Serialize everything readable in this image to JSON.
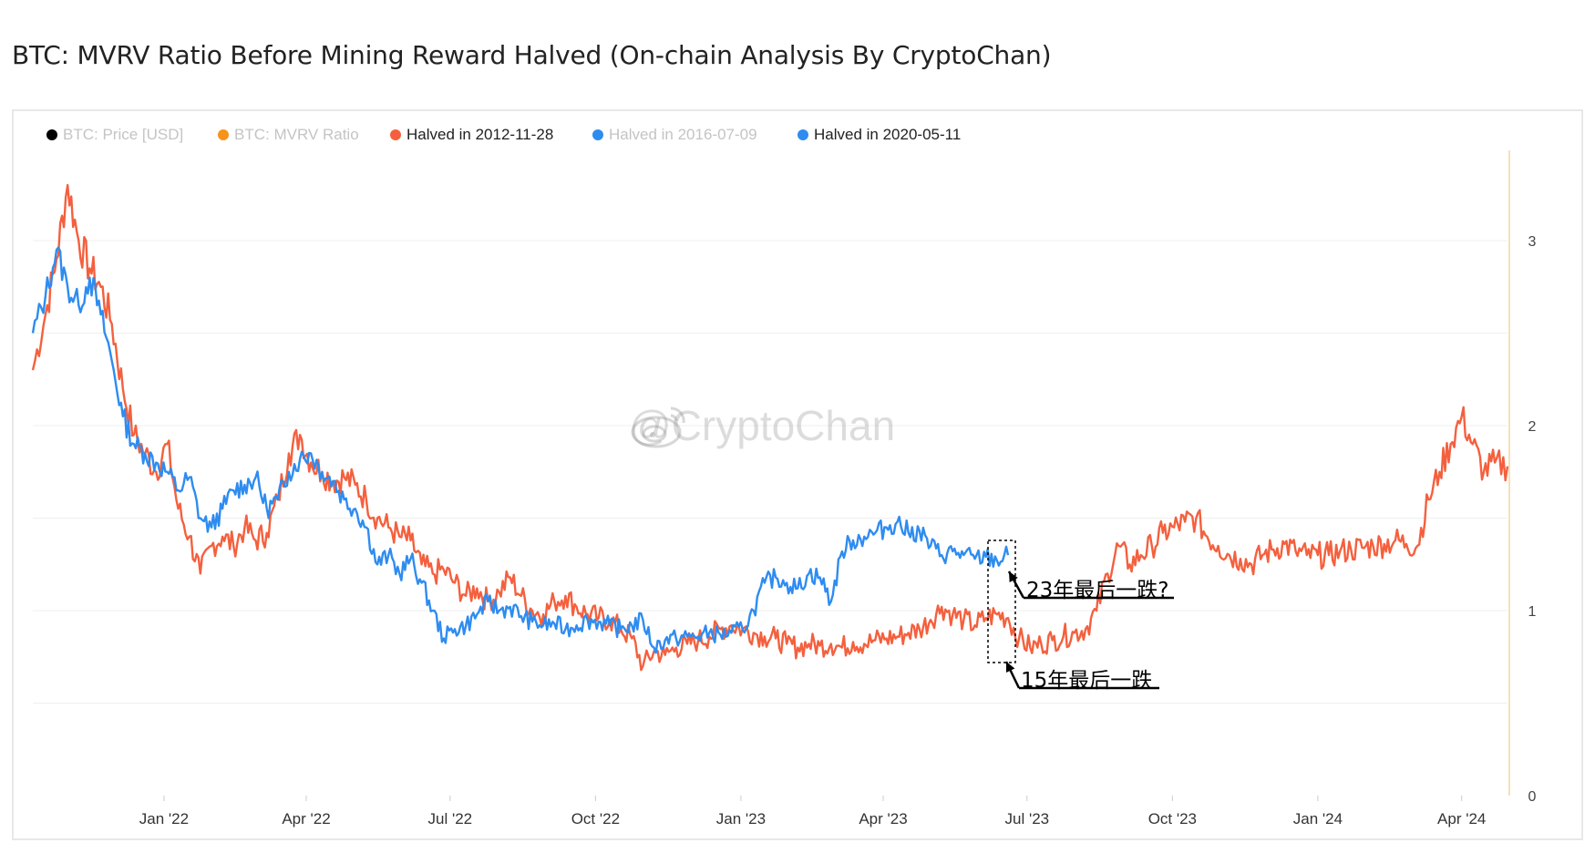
{
  "title": "BTC: MVRV Ratio Before Mining Reward Halved (On-chain Analysis By CryptoChan)",
  "watermark": "@CryptoChan",
  "legend": [
    {
      "label": "BTC: Price [USD]",
      "color": "#000000",
      "active": false
    },
    {
      "label": "BTC: MVRV Ratio",
      "color": "#f7931a",
      "active": false
    },
    {
      "label": "Halved in 2012-11-28",
      "color": "#f4603e",
      "active": true
    },
    {
      "label": "Halved in 2016-07-09",
      "color": "#2e8cf0",
      "active": false
    },
    {
      "label": "Halved in 2020-05-11",
      "color": "#2e8cf0",
      "active": true
    }
  ],
  "annotations": [
    {
      "text": "23年最后一跌?"
    },
    {
      "text": "15年最后一跌"
    }
  ],
  "chart_data": {
    "type": "line",
    "x_ticks": [
      "Jan '22",
      "Apr '22",
      "Jul '22",
      "Oct '22",
      "Jan '23",
      "Apr '23",
      "Jul '23",
      "Oct '23",
      "Jan '24",
      "Apr '24"
    ],
    "y_ticks": [
      "0",
      "1",
      "2",
      "3"
    ],
    "ylim": [
      0,
      3.5
    ],
    "xlim": [
      "2021-10-10",
      "2024-04-30"
    ],
    "grid": true,
    "series": [
      {
        "name": "Halved in 2012-11-28",
        "color": "#f4603e",
        "x": [
          "2021-10-10",
          "2021-10-18",
          "2021-10-25",
          "2021-11-01",
          "2021-11-08",
          "2021-11-15",
          "2021-11-22",
          "2021-11-29",
          "2021-12-06",
          "2021-12-13",
          "2021-12-20",
          "2021-12-27",
          "2022-01-03",
          "2022-01-10",
          "2022-01-17",
          "2022-01-24",
          "2022-01-31",
          "2022-02-07",
          "2022-02-14",
          "2022-02-21",
          "2022-02-28",
          "2022-03-07",
          "2022-03-14",
          "2022-03-21",
          "2022-03-28",
          "2022-04-04",
          "2022-04-11",
          "2022-04-18",
          "2022-04-25",
          "2022-05-02",
          "2022-05-09",
          "2022-05-16",
          "2022-05-23",
          "2022-05-30",
          "2022-06-06",
          "2022-06-13",
          "2022-06-20",
          "2022-06-27",
          "2022-07-04",
          "2022-07-11",
          "2022-07-18",
          "2022-07-25",
          "2022-08-01",
          "2022-08-08",
          "2022-08-15",
          "2022-08-22",
          "2022-08-29",
          "2022-09-05",
          "2022-09-12",
          "2022-09-19",
          "2022-09-26",
          "2022-10-03",
          "2022-10-10",
          "2022-10-17",
          "2022-10-24",
          "2022-10-31",
          "2022-11-07",
          "2022-11-14",
          "2022-11-21",
          "2022-11-28",
          "2022-12-05",
          "2022-12-12",
          "2022-12-19",
          "2022-12-26",
          "2023-01-02",
          "2023-01-09",
          "2023-01-16",
          "2023-01-23",
          "2023-01-30",
          "2023-02-06",
          "2023-02-13",
          "2023-02-20",
          "2023-02-27",
          "2023-03-06",
          "2023-03-13",
          "2023-03-20",
          "2023-03-27",
          "2023-04-03",
          "2023-04-10",
          "2023-04-17",
          "2023-04-24",
          "2023-05-01",
          "2023-05-08",
          "2023-05-15",
          "2023-05-22",
          "2023-05-29",
          "2023-06-05",
          "2023-06-12",
          "2023-06-19",
          "2023-06-26",
          "2023-07-03",
          "2023-07-10",
          "2023-07-17",
          "2023-07-24",
          "2023-07-31",
          "2023-08-07",
          "2023-08-14",
          "2023-08-21",
          "2023-08-28",
          "2023-09-04",
          "2023-09-11",
          "2023-09-18",
          "2023-09-25",
          "2023-10-02",
          "2023-10-09",
          "2023-10-16",
          "2023-10-23",
          "2023-10-30",
          "2023-11-06",
          "2023-11-13",
          "2023-11-20",
          "2023-11-27",
          "2023-12-04",
          "2023-12-11",
          "2023-12-18",
          "2023-12-25",
          "2024-01-01",
          "2024-01-08",
          "2024-01-15",
          "2024-01-22",
          "2024-01-29",
          "2024-02-05",
          "2024-02-12",
          "2024-02-19",
          "2024-02-26",
          "2024-03-04",
          "2024-03-11",
          "2024-03-18",
          "2024-03-25",
          "2024-04-01",
          "2024-04-08",
          "2024-04-15",
          "2024-04-22",
          "2024-04-30"
        ],
        "y": [
          2.3,
          2.6,
          2.9,
          3.3,
          3.0,
          2.85,
          2.75,
          2.55,
          2.2,
          1.95,
          1.85,
          1.75,
          1.9,
          1.55,
          1.4,
          1.2,
          1.35,
          1.4,
          1.35,
          1.45,
          1.38,
          1.42,
          1.6,
          1.85,
          1.95,
          1.8,
          1.75,
          1.7,
          1.72,
          1.68,
          1.6,
          1.5,
          1.45,
          1.4,
          1.38,
          1.25,
          1.2,
          1.22,
          1.15,
          1.08,
          1.12,
          1.05,
          1.1,
          1.18,
          1.08,
          1.0,
          0.98,
          1.05,
          1.08,
          1.02,
          0.98,
          0.96,
          0.95,
          0.9,
          0.85,
          0.7,
          0.78,
          0.76,
          0.8,
          0.82,
          0.84,
          0.86,
          0.9,
          0.92,
          0.9,
          0.88,
          0.86,
          0.85,
          0.82,
          0.8,
          0.82,
          0.81,
          0.82,
          0.8,
          0.83,
          0.82,
          0.84,
          0.85,
          0.86,
          0.88,
          0.9,
          0.95,
          1.02,
          0.98,
          0.95,
          0.92,
          0.96,
          0.98,
          0.96,
          0.85,
          0.8,
          0.82,
          0.84,
          0.86,
          0.88,
          0.9,
          1.0,
          1.2,
          1.35,
          1.25,
          1.3,
          1.35,
          1.42,
          1.45,
          1.48,
          1.5,
          1.4,
          1.35,
          1.3,
          1.28,
          1.25,
          1.3,
          1.33,
          1.36,
          1.32,
          1.3,
          1.3,
          1.3,
          1.32,
          1.33,
          1.34,
          1.35,
          1.36,
          1.38,
          1.36,
          1.35,
          1.6,
          1.75,
          1.9,
          2.05,
          1.9,
          1.75,
          1.8,
          1.78
        ]
      },
      {
        "name": "Halved in 2020-05-11",
        "color": "#2e8cf0",
        "x": [
          "2021-10-10",
          "2021-10-18",
          "2021-10-25",
          "2021-11-01",
          "2021-11-08",
          "2021-11-15",
          "2021-11-22",
          "2021-11-29",
          "2021-12-06",
          "2021-12-13",
          "2021-12-20",
          "2021-12-27",
          "2022-01-03",
          "2022-01-10",
          "2022-01-17",
          "2022-01-24",
          "2022-01-31",
          "2022-02-07",
          "2022-02-14",
          "2022-02-21",
          "2022-02-28",
          "2022-03-07",
          "2022-03-14",
          "2022-03-21",
          "2022-03-28",
          "2022-04-04",
          "2022-04-11",
          "2022-04-18",
          "2022-04-25",
          "2022-05-02",
          "2022-05-09",
          "2022-05-16",
          "2022-05-23",
          "2022-05-30",
          "2022-06-06",
          "2022-06-13",
          "2022-06-20",
          "2022-06-27",
          "2022-07-04",
          "2022-07-11",
          "2022-07-18",
          "2022-07-25",
          "2022-08-01",
          "2022-08-08",
          "2022-08-15",
          "2022-08-22",
          "2022-08-29",
          "2022-09-05",
          "2022-09-12",
          "2022-09-19",
          "2022-09-26",
          "2022-10-03",
          "2022-10-10",
          "2022-10-17",
          "2022-10-24",
          "2022-10-31",
          "2022-11-07",
          "2022-11-14",
          "2022-11-21",
          "2022-11-28",
          "2022-12-05",
          "2022-12-12",
          "2022-12-19",
          "2022-12-26",
          "2023-01-02",
          "2023-01-09",
          "2023-01-16",
          "2023-01-23",
          "2023-01-30",
          "2023-02-06",
          "2023-02-13",
          "2023-02-20",
          "2023-02-27",
          "2023-03-06",
          "2023-03-13",
          "2023-03-20",
          "2023-03-27",
          "2023-04-03",
          "2023-04-10",
          "2023-04-17",
          "2023-04-24",
          "2023-05-01",
          "2023-05-08",
          "2023-05-15",
          "2023-05-22",
          "2023-05-29",
          "2023-06-05",
          "2023-06-12",
          "2023-06-19"
        ],
        "y": [
          2.5,
          2.7,
          2.95,
          2.75,
          2.65,
          2.8,
          2.6,
          2.35,
          2.05,
          1.9,
          1.85,
          1.8,
          1.75,
          1.65,
          1.72,
          1.5,
          1.45,
          1.55,
          1.65,
          1.68,
          1.72,
          1.55,
          1.6,
          1.75,
          1.82,
          1.85,
          1.75,
          1.7,
          1.6,
          1.55,
          1.45,
          1.25,
          1.3,
          1.2,
          1.28,
          1.15,
          1.0,
          0.85,
          0.9,
          0.92,
          0.98,
          1.05,
          1.0,
          1.02,
          0.97,
          0.94,
          0.92,
          0.93,
          0.9,
          0.92,
          0.95,
          0.94,
          0.92,
          0.9,
          0.92,
          0.95,
          0.8,
          0.84,
          0.85,
          0.86,
          0.86,
          0.88,
          0.87,
          0.88,
          0.9,
          1.0,
          1.15,
          1.18,
          1.15,
          1.12,
          1.2,
          1.18,
          1.05,
          1.32,
          1.38,
          1.4,
          1.42,
          1.45,
          1.48,
          1.42,
          1.43,
          1.35,
          1.3,
          1.32,
          1.3,
          1.28,
          1.29,
          1.27,
          1.3
        ]
      }
    ]
  }
}
